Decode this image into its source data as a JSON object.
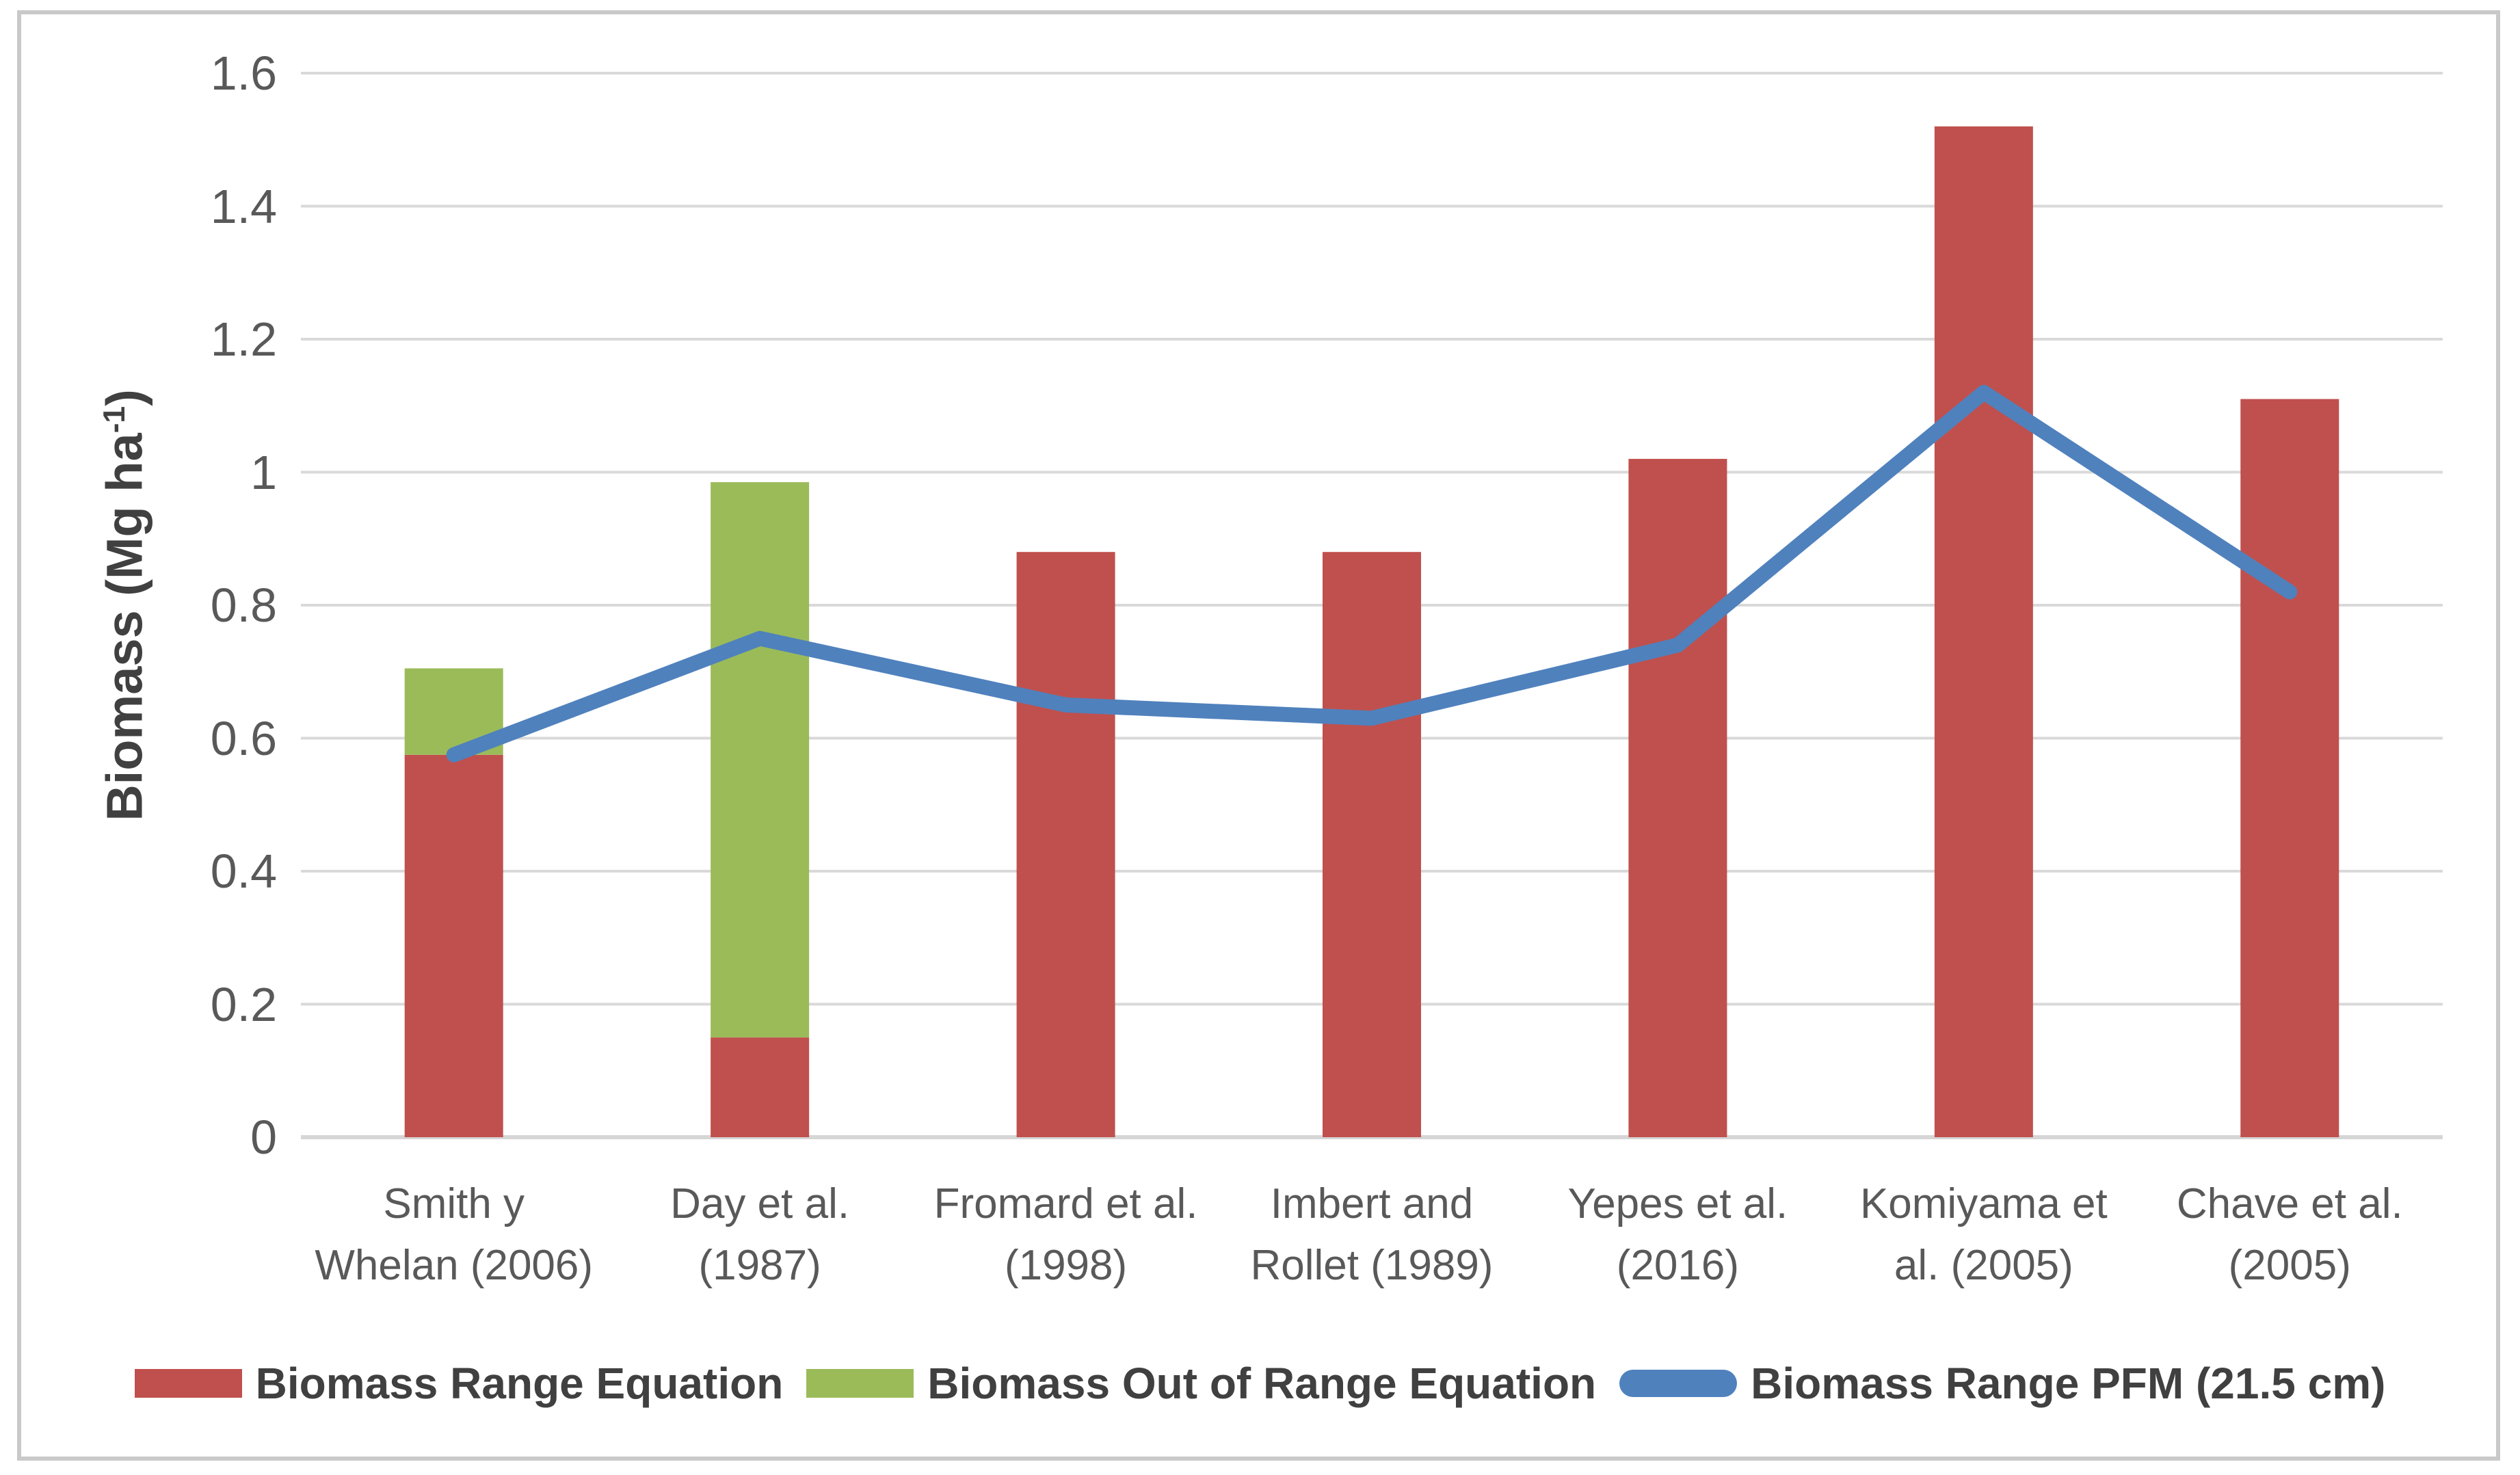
{
  "colors": {
    "red": "#C0504D",
    "green": "#9BBB59",
    "blue": "#4F81BD",
    "gridline": "#D9D9D9",
    "axis_line": "#D6D6D6",
    "tick_text": "#595959",
    "title_text": "#404040",
    "frame_border": "#C9C9C9"
  },
  "axis": {
    "ylabel_pre": "Biomass (Mg ha",
    "ylabel_sup": "-1",
    "ylabel_post": ")"
  },
  "legend": {
    "items": [
      {
        "label": "Biomass Range Equation",
        "color_key": "red",
        "swatch": "rect"
      },
      {
        "label": "Biomass Out of Range Equation",
        "color_key": "green",
        "swatch": "rect"
      },
      {
        "label": "Biomass Range PFM (21.5 cm)",
        "color_key": "blue",
        "swatch": "line-pill"
      }
    ]
  },
  "chart_data": {
    "type": "bar",
    "subtype": "stacked-bars-with-line-overlay",
    "title": "",
    "xlabel": "",
    "ylabel": "Biomass (Mg ha⁻¹)",
    "ylim": [
      0,
      1.6
    ],
    "ytick_step": 0.2,
    "ytick_labels": [
      "0",
      "0.2",
      "0.4",
      "0.6",
      "0.8",
      "1",
      "1.2",
      "1.4",
      "1.6"
    ],
    "grid": true,
    "legend_position": "bottom",
    "categories": [
      "Smith y Whelan (2006)",
      "Day et al. (1987)",
      "Fromard et al. (1998)",
      "Imbert and Rollet (1989)",
      "Yepes et al. (2016)",
      "Komiyama et al. (2005)",
      "Chave et al. (2005)"
    ],
    "category_lines": [
      [
        "Smith y",
        "Whelan (2006)"
      ],
      [
        "Day et al.",
        "(1987)"
      ],
      [
        "Fromard et al.",
        "(1998)"
      ],
      [
        "Imbert and",
        "Rollet (1989)"
      ],
      [
        "Yepes et al.",
        "(2016)"
      ],
      [
        "Komiyama et",
        "al. (2005)"
      ],
      [
        "Chave et al.",
        "(2005)"
      ]
    ],
    "series": [
      {
        "name": "Biomass Range Equation",
        "kind": "bar-stacked",
        "color_key": "red",
        "values": [
          0.575,
          0.15,
          0.88,
          0.88,
          1.02,
          1.52,
          1.11
        ]
      },
      {
        "name": "Biomass Out of Range Equation",
        "kind": "bar-stacked",
        "color_key": "green",
        "values": [
          0.13,
          0.835,
          0,
          0,
          0,
          0,
          0
        ]
      },
      {
        "name": "Biomass Range PFM (21.5 cm)",
        "kind": "line",
        "color_key": "blue",
        "values": [
          0.575,
          0.75,
          0.65,
          0.63,
          0.74,
          1.12,
          0.82
        ]
      }
    ]
  }
}
